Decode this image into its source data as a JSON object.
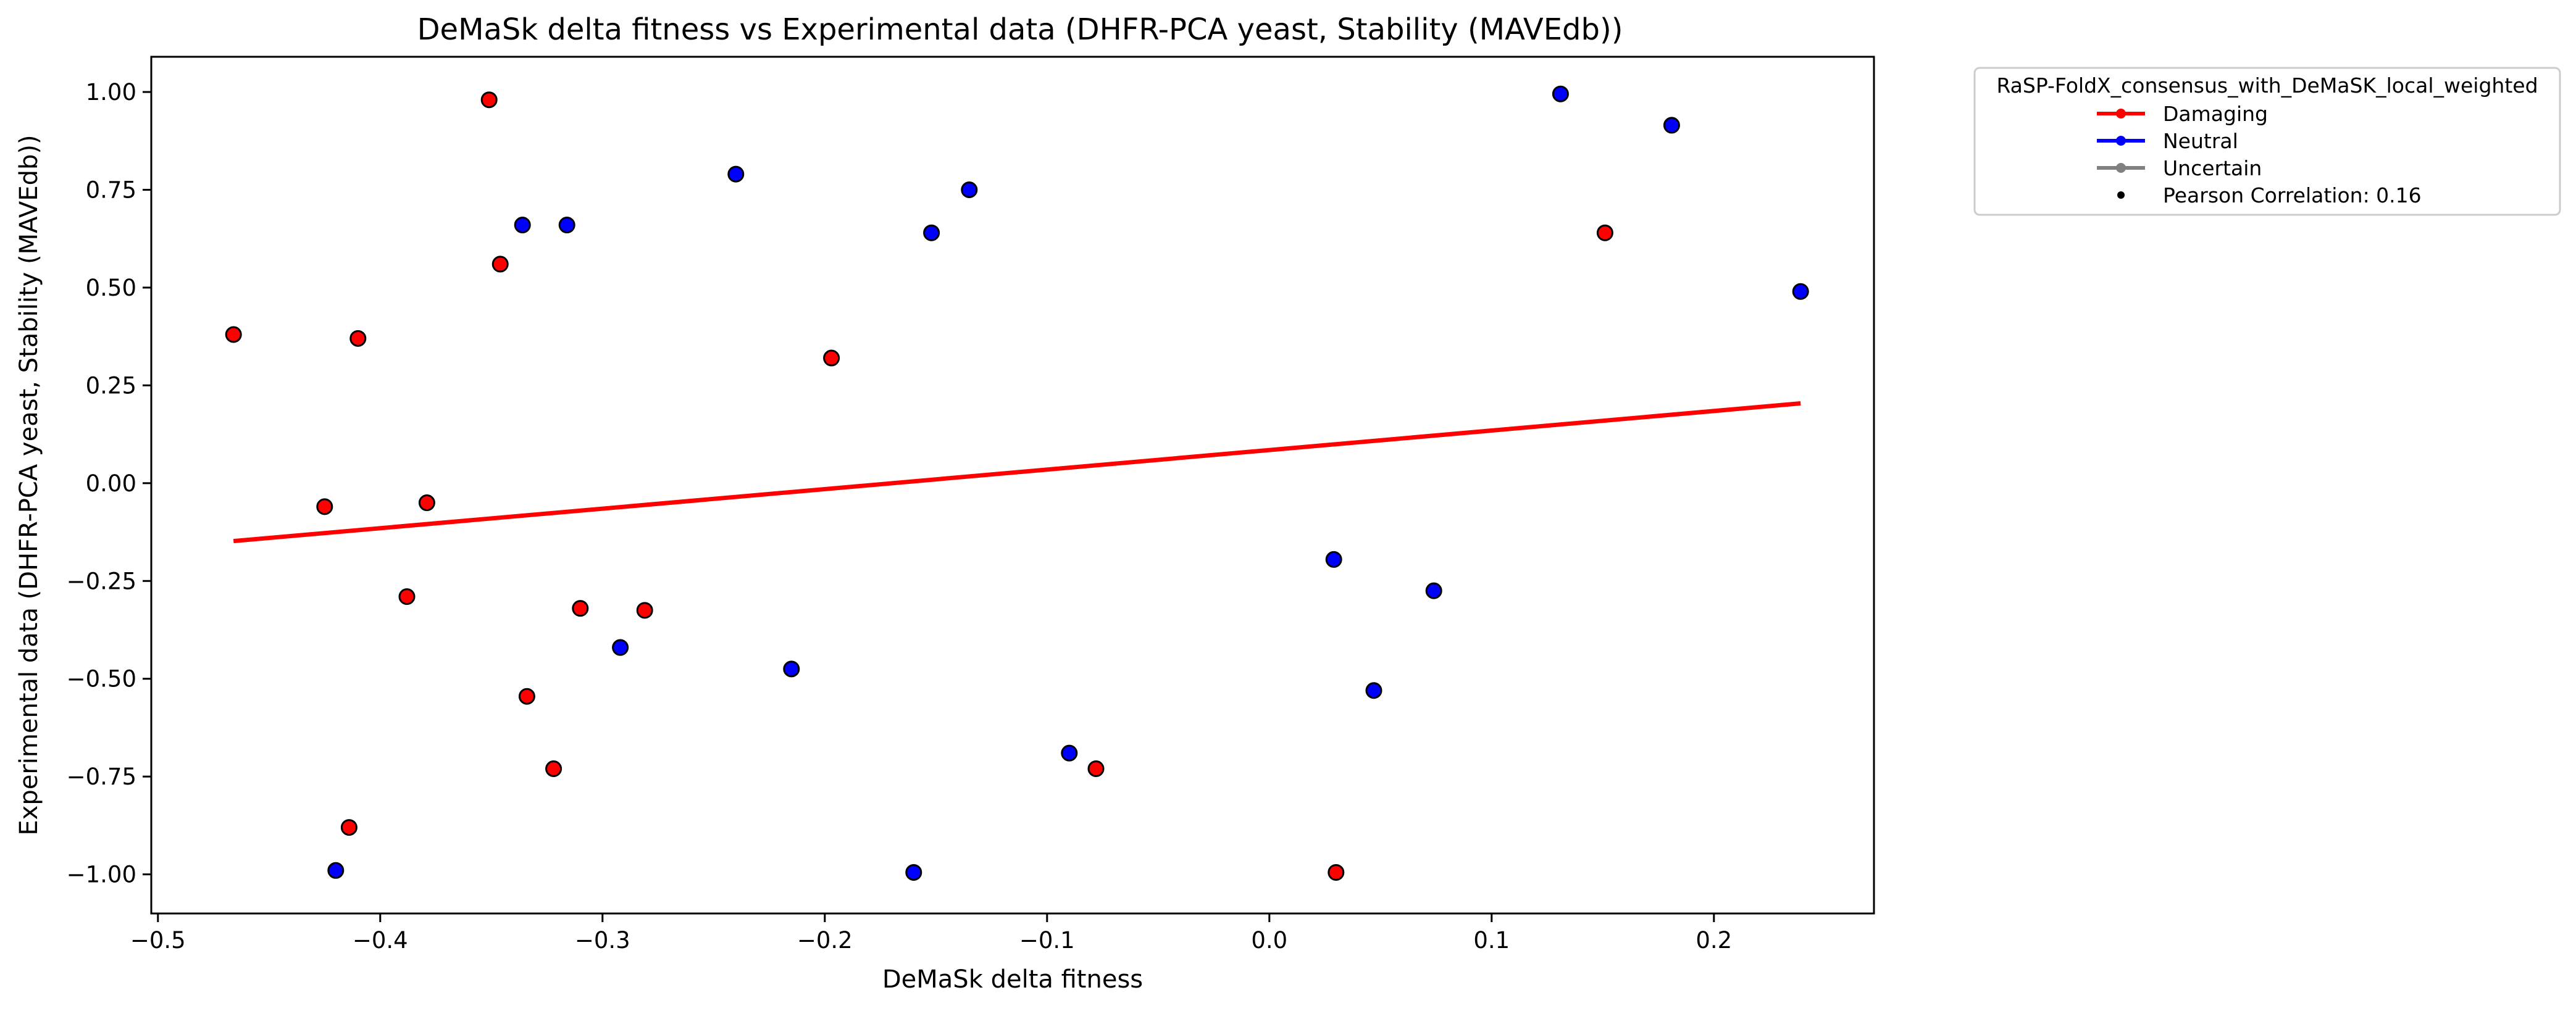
{
  "chart_data": {
    "type": "scatter",
    "title": "DeMaSk delta fitness vs Experimental data (DHFR-PCA yeast, Stability (MAVEdb))",
    "xlabel": "DeMaSk delta fitness",
    "ylabel": "Experimental data (DHFR-PCA yeast, Stability (MAVEdb))",
    "xlim": [
      -0.503,
      0.272
    ],
    "ylim": [
      -1.1,
      1.09
    ],
    "xticks": [
      -0.5,
      -0.4,
      -0.3,
      -0.2,
      -0.1,
      0.0,
      0.1,
      0.2
    ],
    "xtick_labels": [
      "−0.5",
      "−0.4",
      "−0.3",
      "−0.2",
      "−0.1",
      "0.0",
      "0.1",
      "0.2"
    ],
    "yticks": [
      -1.0,
      -0.75,
      -0.5,
      -0.25,
      0.0,
      0.25,
      0.5,
      0.75,
      1.0
    ],
    "ytick_labels": [
      "−1.00",
      "−0.75",
      "−0.50",
      "−0.25",
      "0.00",
      "0.25",
      "0.50",
      "0.75",
      "1.00"
    ],
    "grid": false,
    "legend": {
      "title": "RaSP-FoldX_consensus_with_DeMaSK_local_weighted",
      "placement": "outside-top-right",
      "entries": [
        {
          "label": "Damaging",
          "color": "#ff0000",
          "kind": "line-marker"
        },
        {
          "label": "Neutral",
          "color": "#0000ff",
          "kind": "line-marker"
        },
        {
          "label": "Uncertain",
          "color": "#808080",
          "kind": "line-marker"
        },
        {
          "label": "Pearson Correlation: 0.16",
          "color": "#000000",
          "kind": "dot"
        }
      ]
    },
    "series": [
      {
        "name": "Damaging",
        "color": "#ff0000",
        "points": [
          {
            "x": -0.466,
            "y": 0.38
          },
          {
            "x": -0.425,
            "y": -0.06
          },
          {
            "x": -0.414,
            "y": -0.88
          },
          {
            "x": -0.41,
            "y": 0.37
          },
          {
            "x": -0.388,
            "y": -0.29
          },
          {
            "x": -0.379,
            "y": -0.05
          },
          {
            "x": -0.351,
            "y": 0.98
          },
          {
            "x": -0.346,
            "y": 0.56
          },
          {
            "x": -0.334,
            "y": -0.545
          },
          {
            "x": -0.322,
            "y": -0.73
          },
          {
            "x": -0.31,
            "y": -0.32
          },
          {
            "x": -0.281,
            "y": -0.325
          },
          {
            "x": -0.197,
            "y": 0.32
          },
          {
            "x": -0.078,
            "y": -0.73
          },
          {
            "x": 0.03,
            "y": -0.995
          },
          {
            "x": 0.151,
            "y": 0.64
          }
        ]
      },
      {
        "name": "Neutral",
        "color": "#0000ff",
        "points": [
          {
            "x": -0.42,
            "y": -0.99
          },
          {
            "x": -0.336,
            "y": 0.66
          },
          {
            "x": -0.316,
            "y": 0.66
          },
          {
            "x": -0.292,
            "y": -0.42
          },
          {
            "x": -0.24,
            "y": 0.79
          },
          {
            "x": -0.215,
            "y": -0.475
          },
          {
            "x": -0.16,
            "y": -0.995
          },
          {
            "x": -0.152,
            "y": 0.64
          },
          {
            "x": -0.135,
            "y": 0.75
          },
          {
            "x": -0.09,
            "y": -0.69
          },
          {
            "x": 0.029,
            "y": -0.195
          },
          {
            "x": 0.047,
            "y": -0.53
          },
          {
            "x": 0.074,
            "y": -0.275
          },
          {
            "x": 0.131,
            "y": 0.995
          },
          {
            "x": 0.181,
            "y": 0.915
          },
          {
            "x": 0.239,
            "y": 0.49
          }
        ]
      }
    ],
    "trendline": {
      "color": "#ff0000",
      "x": [
        -0.466,
        0.239
      ],
      "y": [
        -0.148,
        0.204
      ]
    },
    "pearson_correlation": 0.16
  }
}
